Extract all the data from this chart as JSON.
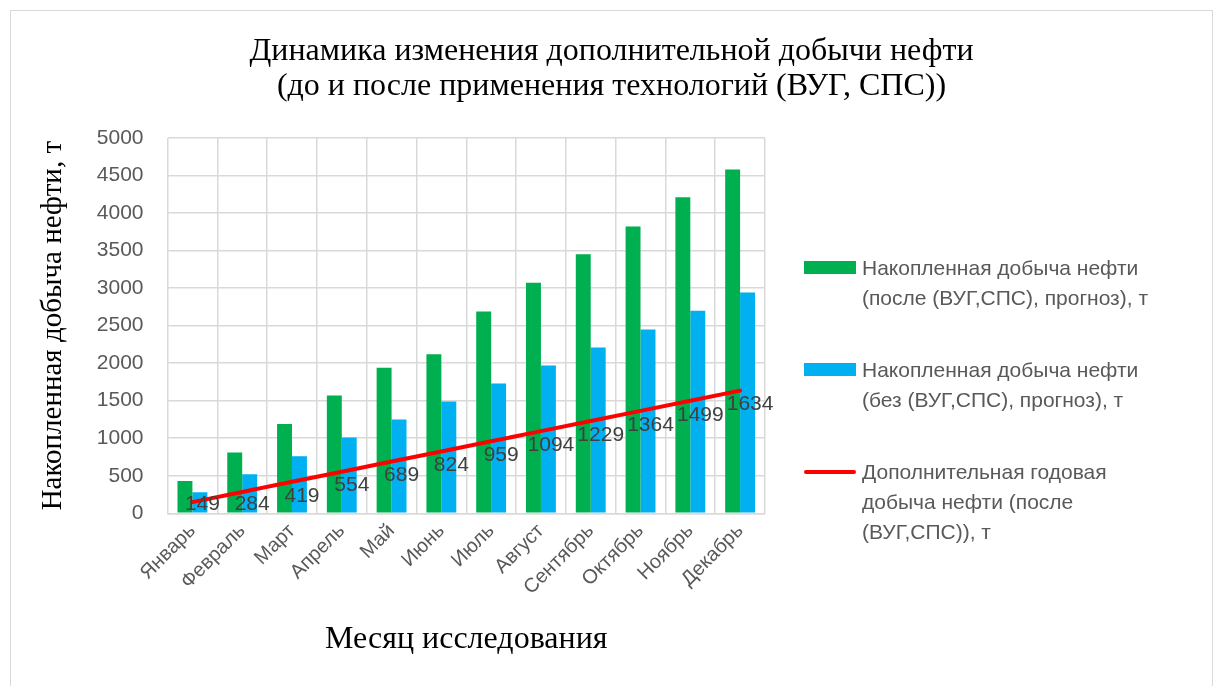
{
  "chart_data": {
    "type": "bar",
    "title": "Динамика изменения дополнительной добычи нефти\n(до и после применения технологий (ВУГ, СПС))",
    "xlabel": "Месяц исследования",
    "ylabel": "Накопленная добыча нефти, т",
    "categories": [
      "Январь",
      "Февраль",
      "Март",
      "Апрель",
      "Май",
      "Июнь",
      "Июль",
      "Август",
      "Сентябрь",
      "Октябрь",
      "Ноябрь",
      "Декабрь"
    ],
    "series": [
      {
        "name": "Накопленная добыча нефти (после (ВУГ,СПС), прогноз), т",
        "color": "#00b050",
        "values": [
          430,
          810,
          1190,
          1570,
          1940,
          2120,
          2690,
          3070,
          3450,
          3820,
          4210,
          4580
        ]
      },
      {
        "name": "Накопленная добыча нефти (без (ВУГ,СПС), прогноз), т",
        "color": "#00b0f0",
        "values": [
          280,
          520,
          760,
          1010,
          1250,
          1490,
          1730,
          1970,
          2210,
          2450,
          2700,
          2940
        ]
      },
      {
        "name": "Дополнительная годовая добыча нефти (после (ВУГ,СПС)), т",
        "type": "line",
        "color": "#ff0000",
        "values": [
          149,
          284,
          419,
          554,
          689,
          824,
          959,
          1094,
          1229,
          1364,
          1499,
          1634
        ],
        "value_labels": [
          "149",
          "284",
          "419",
          "554",
          "689",
          "824",
          "959",
          "1094",
          "1229",
          "1364",
          "1499",
          "1634"
        ]
      }
    ],
    "ylim": [
      0,
      5000
    ],
    "yticks": [
      0,
      500,
      1000,
      1500,
      2000,
      2500,
      3000,
      3500,
      4000,
      4500,
      5000
    ],
    "grid": true,
    "legend": "right"
  }
}
